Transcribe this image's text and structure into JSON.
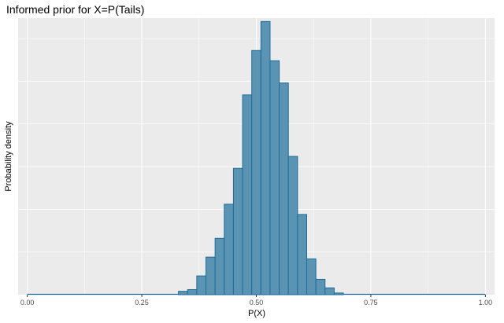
{
  "chart_data": {
    "type": "bar",
    "title": "Informed prior for X=P(Tails)",
    "xlabel": "P(X)",
    "ylabel": "Probability density",
    "xlim": [
      -0.02,
      1.02
    ],
    "ylim": [
      0,
      0.162
    ],
    "x_ticks": [
      0.0,
      0.25,
      0.5,
      0.75,
      1.0
    ],
    "x_tick_labels": [
      "0.00",
      "0.25",
      "0.50",
      "0.75",
      "1.00"
    ],
    "y_tick_values": [
      0.025,
      0.05,
      0.075,
      0.1,
      0.125,
      0.15
    ],
    "y_tick_labels": [],
    "grid": true,
    "bin_width": 0.02,
    "bins": [
      {
        "x0": 0.33,
        "x1": 0.35,
        "value": 0.002
      },
      {
        "x0": 0.35,
        "x1": 0.37,
        "value": 0.003
      },
      {
        "x0": 0.37,
        "x1": 0.39,
        "value": 0.011
      },
      {
        "x0": 0.39,
        "x1": 0.41,
        "value": 0.022
      },
      {
        "x0": 0.41,
        "x1": 0.43,
        "value": 0.033
      },
      {
        "x0": 0.43,
        "x1": 0.45,
        "value": 0.053
      },
      {
        "x0": 0.45,
        "x1": 0.47,
        "value": 0.074
      },
      {
        "x0": 0.47,
        "x1": 0.49,
        "value": 0.117
      },
      {
        "x0": 0.49,
        "x1": 0.51,
        "value": 0.143
      },
      {
        "x0": 0.51,
        "x1": 0.53,
        "value": 0.16
      },
      {
        "x0": 0.53,
        "x1": 0.55,
        "value": 0.137
      },
      {
        "x0": 0.55,
        "x1": 0.57,
        "value": 0.124
      },
      {
        "x0": 0.57,
        "x1": 0.59,
        "value": 0.081
      },
      {
        "x0": 0.59,
        "x1": 0.61,
        "value": 0.047
      },
      {
        "x0": 0.61,
        "x1": 0.63,
        "value": 0.021
      },
      {
        "x0": 0.63,
        "x1": 0.65,
        "value": 0.009
      },
      {
        "x0": 0.65,
        "x1": 0.67,
        "value": 0.004
      },
      {
        "x0": 0.67,
        "x1": 0.69,
        "value": 0.001
      }
    ],
    "baseline_range": [
      0.0,
      1.0
    ],
    "colors": {
      "panel_background": "#ebebeb",
      "grid": "#ffffff",
      "bar_fill": "#5b93b2",
      "bar_outline": "#1f6c9a",
      "baseline": "#1f6c9a"
    }
  }
}
